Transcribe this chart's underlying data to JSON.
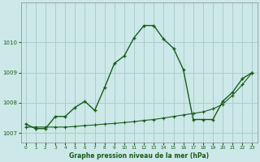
{
  "title": "Graphe pression niveau de la mer (hPa)",
  "bg_color": "#cce8e8",
  "grid_color": "#aacece",
  "line_color": "#1a5c1a",
  "xlim": [
    -0.5,
    23.5
  ],
  "ylim": [
    1006.7,
    1011.3
  ],
  "yticks": [
    1007,
    1008,
    1009,
    1010
  ],
  "xticks": [
    0,
    1,
    2,
    3,
    4,
    5,
    6,
    7,
    8,
    9,
    10,
    11,
    12,
    13,
    14,
    15,
    16,
    17,
    18,
    19,
    20,
    21,
    22,
    23
  ],
  "curve_x": [
    0,
    1,
    2,
    3,
    4,
    5,
    6,
    7,
    8,
    9,
    10,
    11,
    12,
    13,
    14,
    15,
    16,
    17,
    18,
    19,
    20,
    21,
    22,
    23
  ],
  "curve_y": [
    1007.3,
    1007.15,
    1007.15,
    1007.55,
    1007.55,
    1007.85,
    1008.05,
    1007.75,
    1008.5,
    1009.3,
    1009.55,
    1010.15,
    1010.55,
    1010.55,
    1010.1,
    1009.8,
    1009.1,
    1007.45,
    1007.45,
    1007.45,
    1008.05,
    1008.35,
    1008.8,
    1009.0
  ],
  "trend_x": [
    0,
    1,
    2,
    3,
    4,
    5,
    6,
    7,
    8,
    9,
    10,
    11,
    12,
    13,
    14,
    15,
    16,
    17,
    18,
    19,
    20,
    21,
    22,
    23
  ],
  "trend_y": [
    1007.2,
    1007.2,
    1007.2,
    1007.2,
    1007.2,
    1007.22,
    1007.25,
    1007.27,
    1007.3,
    1007.32,
    1007.35,
    1007.38,
    1007.42,
    1007.45,
    1007.5,
    1007.55,
    1007.6,
    1007.65,
    1007.7,
    1007.8,
    1007.95,
    1008.25,
    1008.6,
    1009.0
  ]
}
